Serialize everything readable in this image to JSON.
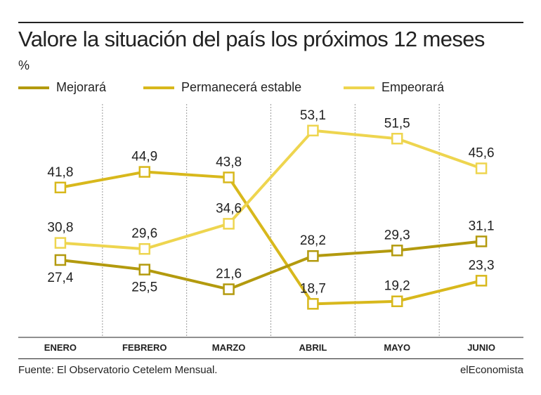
{
  "header": {
    "title": "Valore la situación del país los próximos 12 meses",
    "unit": "%"
  },
  "footer": {
    "source": "Fuente: El Observatorio Cetelem Mensual.",
    "brand": "elEconomista"
  },
  "colors": {
    "mejorara": "#b39a0e",
    "permanecera": "#d8b81c",
    "empeorara": "#eed54f",
    "grid": "#9a9a9a",
    "text": "#222222"
  },
  "chart_data": {
    "type": "line",
    "categories": [
      "ENERO",
      "FEBRERO",
      "MARZO",
      "ABRIL",
      "MAYO",
      "JUNIO"
    ],
    "series": [
      {
        "name": "Mejorará",
        "values": [
          27.4,
          25.5,
          21.6,
          28.2,
          29.3,
          31.1
        ],
        "labels": [
          "27,4",
          "25,5",
          "21,6",
          "28,2",
          "29,3",
          "31,1"
        ]
      },
      {
        "name": "Permanecerá estable",
        "values": [
          41.8,
          44.9,
          43.8,
          18.7,
          19.2,
          23.3
        ],
        "labels": [
          "41,8",
          "44,9",
          "43,8",
          "18,7",
          "19,2",
          "23,3"
        ]
      },
      {
        "name": "Empeorará",
        "values": [
          30.8,
          29.6,
          34.6,
          53.1,
          51.5,
          45.6
        ],
        "labels": [
          "30,8",
          "29,6",
          "34,6",
          "53,1",
          "51,5",
          "45,6"
        ]
      }
    ],
    "ylim": [
      14,
      56
    ],
    "grid": "vertical dashed separators",
    "legend": "top-left"
  }
}
